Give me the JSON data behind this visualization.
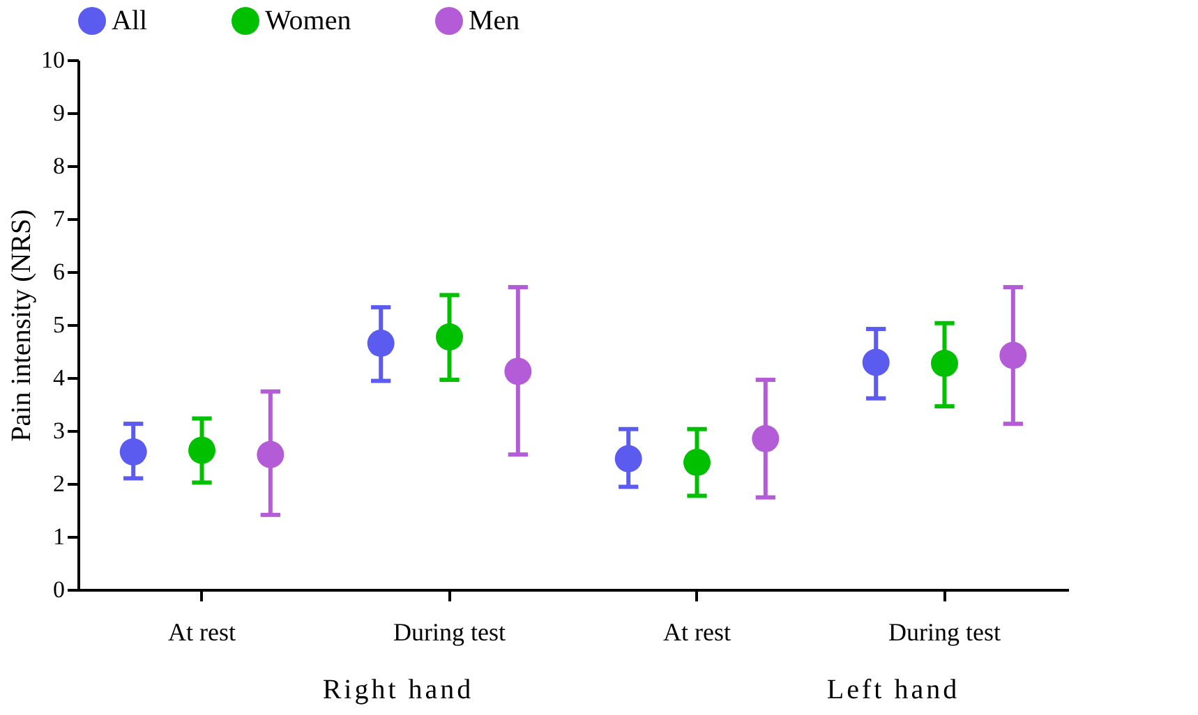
{
  "chart_data": {
    "type": "scatter",
    "ylabel": "Pain intensity (NRS)",
    "categories": [
      "At rest",
      "During test",
      "At rest",
      "During test"
    ],
    "ylim": [
      0,
      10
    ],
    "yticks": [
      0,
      1,
      2,
      3,
      4,
      5,
      6,
      7,
      8,
      9,
      10
    ],
    "grid": false,
    "legend": "top",
    "marker": "circle",
    "annotations": [
      "Right hand",
      "Left hand"
    ],
    "series": [
      {
        "name": "All",
        "color": "#5b5bf0",
        "values": [
          2.6,
          4.65,
          2.47,
          4.29
        ],
        "errors": [
          [
            2.1,
            3.13
          ],
          [
            3.94,
            5.33
          ],
          [
            1.94,
            3.03
          ],
          [
            3.61,
            4.92
          ]
        ]
      },
      {
        "name": "Women",
        "color": "#00c000",
        "values": [
          2.63,
          4.77,
          2.4,
          4.27
        ],
        "errors": [
          [
            2.02,
            3.23
          ],
          [
            3.96,
            5.56
          ],
          [
            1.77,
            3.03
          ],
          [
            3.46,
            5.03
          ]
        ]
      },
      {
        "name": "Men",
        "color": "#b45cd8",
        "values": [
          2.55,
          4.12,
          2.85,
          4.42
        ],
        "errors": [
          [
            1.41,
            3.74
          ],
          [
            2.55,
            5.71
          ],
          [
            1.74,
            3.96
          ],
          [
            3.13,
            5.71
          ]
        ]
      }
    ]
  }
}
